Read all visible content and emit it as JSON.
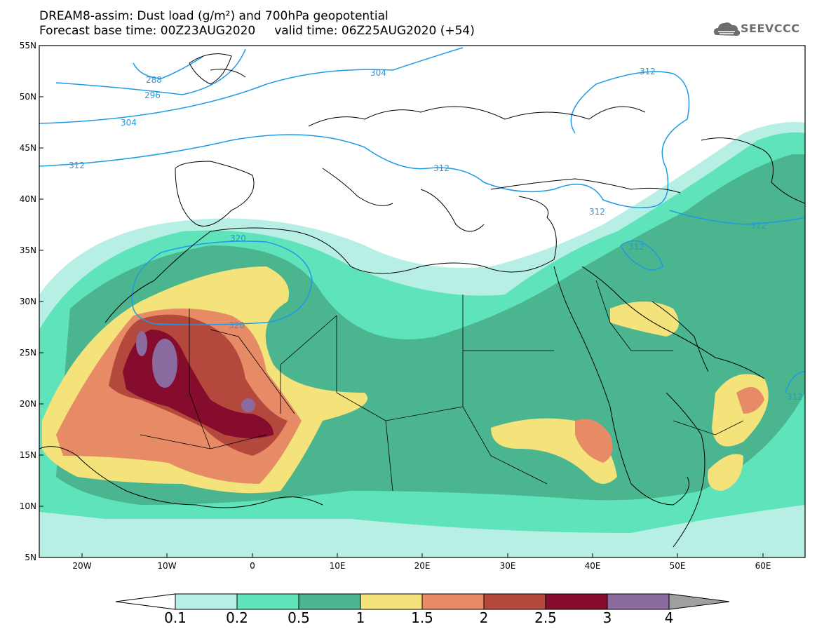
{
  "title": {
    "line1": "DREAM8-assim: Dust load (g/m²) and 700hPa geopotential",
    "line2": "Forecast base time: 00Z23AUG2020     valid time: 06Z25AUG2020 (+54)"
  },
  "logo": {
    "text": "SEEVCCC",
    "icon": "cloud-icon"
  },
  "map": {
    "lat_labels": [
      "55N",
      "50N",
      "45N",
      "40N",
      "35N",
      "30N",
      "25N",
      "20N",
      "15N",
      "10N",
      "5N"
    ],
    "lon_labels": [
      "20W",
      "10W",
      "0",
      "10E",
      "20E",
      "30E",
      "40E",
      "50E",
      "60E"
    ],
    "lat_range": [
      5,
      55
    ],
    "lon_range": [
      -25,
      65
    ],
    "contour_labels": [
      "288",
      "296",
      "304",
      "312",
      "304",
      "312",
      "312",
      "312",
      "312",
      "320",
      "320",
      "312",
      "312"
    ]
  },
  "legend": {
    "labels": [
      "0.1",
      "0.2",
      "0.5",
      "1",
      "1.5",
      "2",
      "2.5",
      "3",
      "4"
    ],
    "colors": [
      "#b8efe4",
      "#5ee3bb",
      "#4ab58f",
      "#f3e37a",
      "#e78a66",
      "#b5483c",
      "#850c2c",
      "#8b6aa0"
    ],
    "under_color": "#ffffff",
    "over_color": "#a0a0a0"
  }
}
